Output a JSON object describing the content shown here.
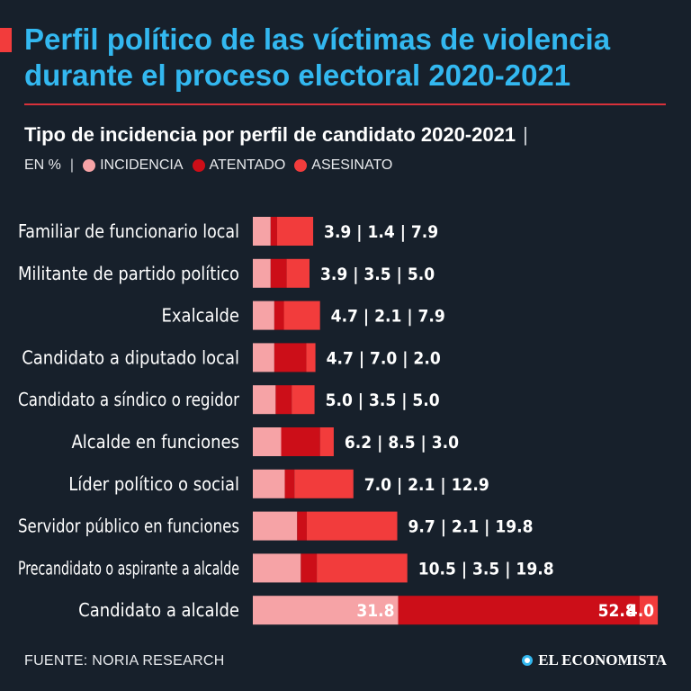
{
  "header": {
    "title": "Perfil político de las víctimas de violencia durante el proceso electoral 2020-2021"
  },
  "chart_data": {
    "type": "bar",
    "orientation": "horizontal",
    "stacked": true,
    "title": "Tipo de incidencia por perfil de candidato 2020-2021",
    "title_separator": "|",
    "unit_label": "EN %",
    "unit_separator": "|",
    "categories": [
      "Familiar de funcionario local",
      "Militante de partido político",
      "Exalcalde",
      "Candidato a diputado local",
      "Candidato a síndico o regidor",
      "Alcalde en funciones",
      "Líder político o social",
      "Servidor público en funciones",
      "Precandidato o aspirante a alcalde",
      "Candidato a alcalde"
    ],
    "series": [
      {
        "name": "INCIDENCIA",
        "color": "#f6a3a6",
        "values": [
          3.9,
          3.9,
          4.7,
          4.7,
          5.0,
          6.2,
          7.0,
          9.7,
          10.5,
          31.8
        ]
      },
      {
        "name": "ATENTADO",
        "color": "#cc0e18",
        "values": [
          1.4,
          3.5,
          2.1,
          7.0,
          3.5,
          8.5,
          2.1,
          2.1,
          3.5,
          52.8
        ]
      },
      {
        "name": "ASESINATO",
        "color": "#f23c3c",
        "values": [
          7.9,
          5.0,
          7.9,
          2.0,
          5.0,
          3.0,
          12.9,
          19.8,
          19.8,
          4.0
        ]
      }
    ],
    "label_separator": "|",
    "label_format": "value | value | value (right of bar); values inside bar for last row",
    "legend_position": "top-left",
    "grid": false
  },
  "footer": {
    "source": "FUENTE: NORIA RESEARCH",
    "brand": "EL ECONOMISTA"
  }
}
